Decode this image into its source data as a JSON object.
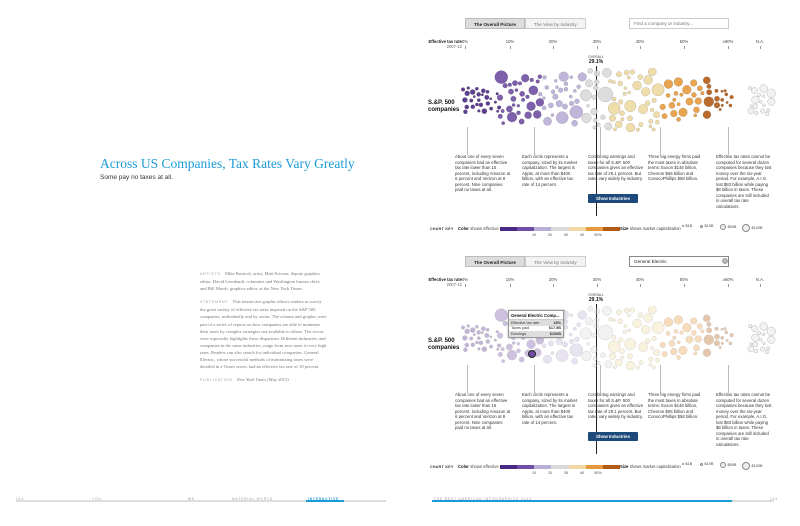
{
  "left_page": {
    "title": "Across US Companies, Tax Rates Vary Greatly",
    "subtitle": "Some pay no taxes at all.",
    "credits": {
      "artists_label": "ARTISTS",
      "artists_text": "Mike Bostock, artist, Matt Ericson, deputy graphics editor, David Leonhardt, columnist and Washington bureau chief, and Bill Marsh, graphics editor, at the New York Times.",
      "statement_label": "STATEMENT",
      "statement_text": "This interactive graphic allows readers to survey the great variety of effective tax rates imposed on the S&P 500 companies, individually and by sector. The column and graphic were part of a series of reports on how companies are able to minimize their taxes by complex strategies not available to others. The sector view especially highlights these disparities. Different industries, and companies in the same industries, range from zero taxes to very high rates. Readers can also search for individual companies. General Electric, whose successful methods of minimizing taxes were detailed in a Times series, had an effective tax rate of 18 percent.",
      "publication_label": "PUBLICATION",
      "publication_text": "New York Times (May 2013)"
    },
    "footer": {
      "page_number": "144",
      "sections": [
        "YOU",
        "WE",
        "MATERIAL WORLD",
        "INTERACTIVE"
      ]
    }
  },
  "right_page": {
    "footer": {
      "book_title": "THE BEST AMERICAN INFOGRAPHICS 2014",
      "page_number": "145"
    }
  },
  "graphic": {
    "tabs": [
      "The Overall Picture",
      "The View by Industry"
    ],
    "search_placeholder": "Find a company or industry...",
    "search_value_bottom": "General Electric",
    "scale_label": "Effective tax rate",
    "scale_years": "2007-12",
    "ticks": [
      "0%",
      "10%",
      "20%",
      "30%",
      "40%",
      "50%",
      "≥60%",
      "N.A."
    ],
    "overall_label": "OVERALL",
    "overall_value": "29.1%",
    "sp_label": "S.&P. 500 companies",
    "annotations": [
      "About one of every seven companies had an effective tax rate lower than 15 percent, including Amazon at 6 percent and Verizon at 8 percent. Nine companies paid no taxes at all.",
      "Each circle represents a company, sized by its market capitalization. The largest is Apple, at more than $400 billion, with an effective tax rate of 14 percent.",
      "Combining earnings and taxes for all S.&P. 500 companies gives an effective tax rate of 29.1 percent. But rates vary widely by industry.",
      "Three big energy firms paid the most taxes in absolute terms: Exxon $146 billion, Chevron $65 billion and ConocoPhillips $58 billion.",
      "Effective tax rates cannot be computed for several dozen companies because they lost money over the six-year period. For example, A.I.G. lost $83 billion while paying $8 billion in taxes. These companies are still included in overall tax rate calculations."
    ],
    "show_industries_label": "Show Industries",
    "chart_key_label": "CHART KEY",
    "color_key_label": "Color",
    "color_key_text": "shows effective rate",
    "color_scale_ticks": [
      "10",
      "20",
      "30",
      "40",
      "50%"
    ],
    "size_key_label": "Size",
    "size_key_text": "shows market capitalization",
    "size_items": [
      "$1B",
      "$10B",
      "$50B",
      "$100B"
    ],
    "tooltip": {
      "title": "General Electric Comp...",
      "rows": [
        {
          "label": "Effective tax rate",
          "value": "18%"
        },
        {
          "label": "Taxes paid",
          "value": "$17.5B"
        },
        {
          "label": "Earnings",
          "value": "$100B"
        }
      ]
    },
    "colors": {
      "purple_dark": "#4b2a86",
      "purple": "#6f4ea3",
      "lavender": "#b9aed6",
      "gray": "#d9d9d9",
      "tan": "#eed9a3",
      "orange": "#e79a3c",
      "orange_dark": "#b25b14",
      "accent_blue": "#1a9bd7",
      "button": "#1d4a7a"
    }
  }
}
